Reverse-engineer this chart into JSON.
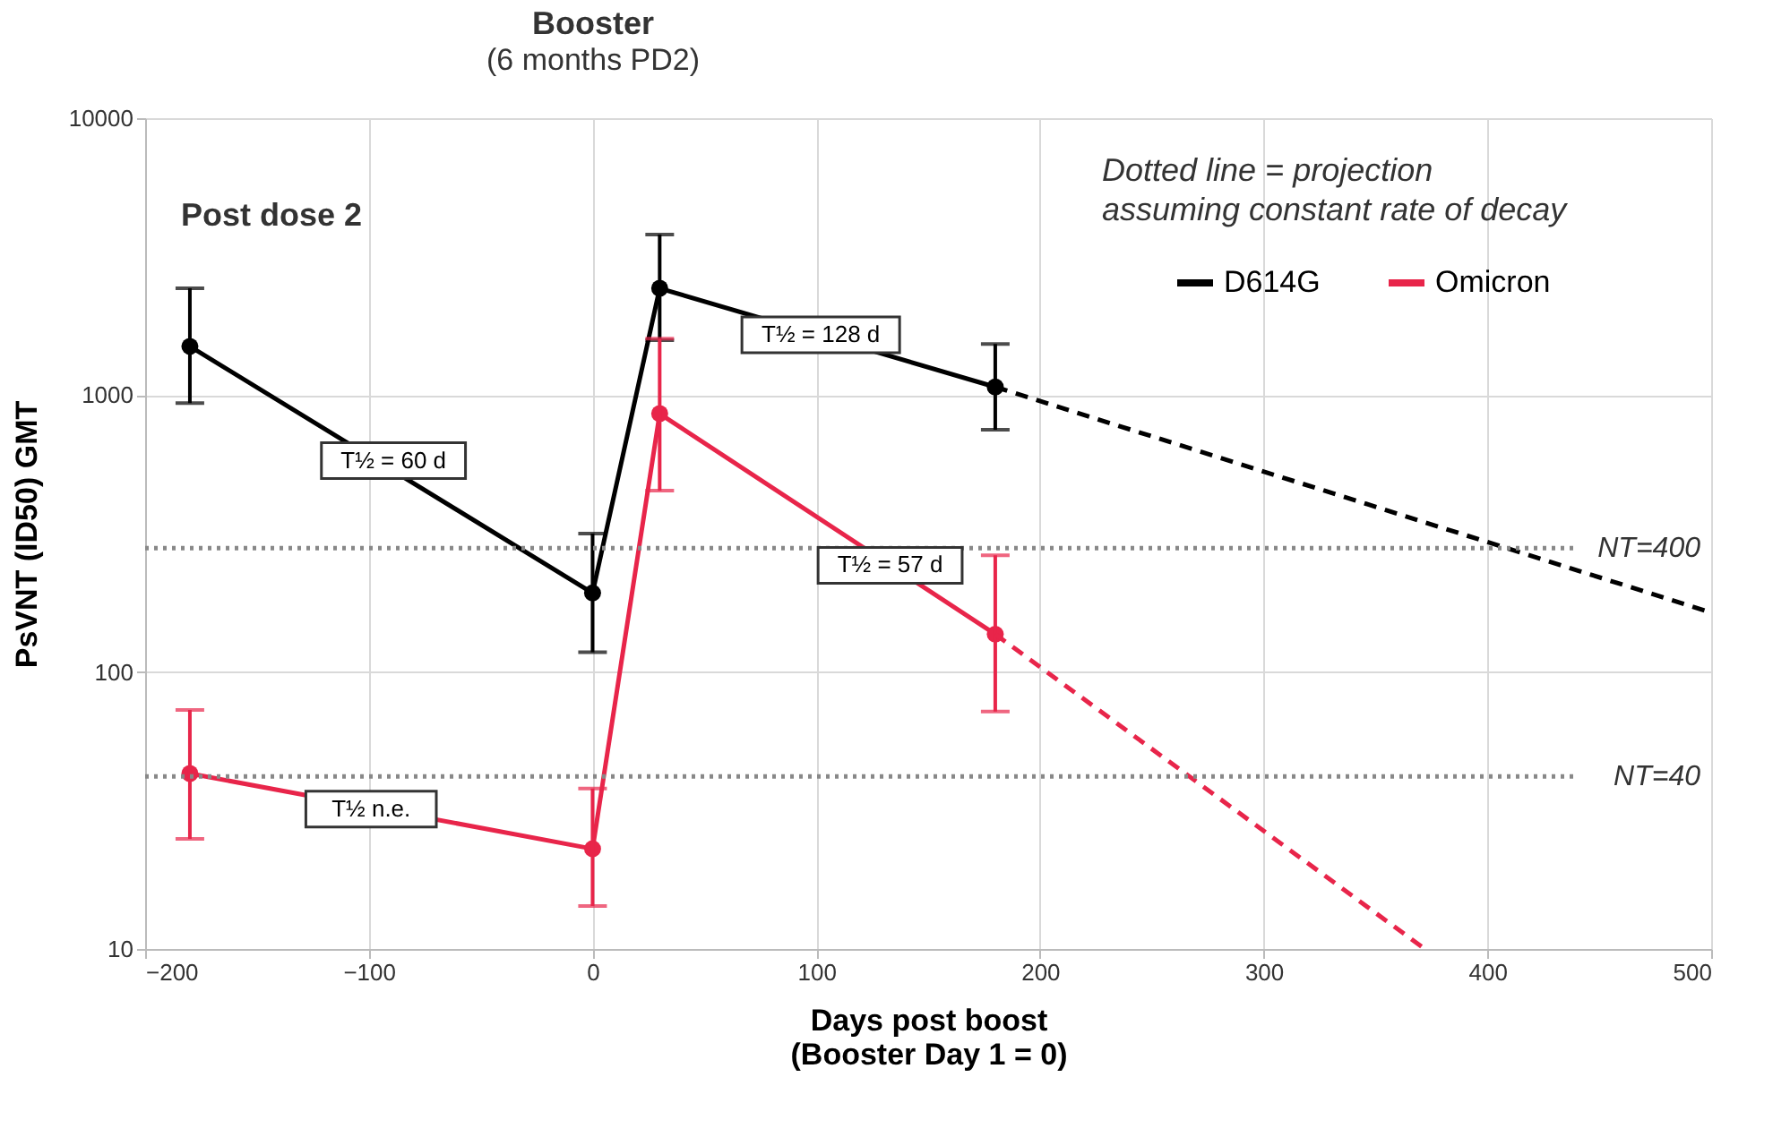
{
  "chart_data": {
    "type": "line",
    "title": "Booster",
    "subtitle": "(6 months PD2)",
    "xlabel": "Days post boost\n(Booster Day 1 = 0)",
    "ylabel": "PsVNT (ID50) GMT",
    "series": [
      {
        "name": "D614G",
        "color": "#000000",
        "x": [
          -180,
          0,
          30,
          180
        ],
        "values": [
          1500,
          193,
          2430,
          1070
        ],
        "errors": [
          [
            936,
            2430
          ],
          [
            118,
            316
          ],
          [
            1580,
            3800
          ],
          [
            750,
            1530
          ]
        ],
        "marker": "circle",
        "line_style": "solid"
      },
      {
        "name": "Omicron",
        "color": "#e8254a",
        "x": [
          -180,
          0,
          30,
          180
        ],
        "values": [
          43,
          23,
          857,
          137
        ],
        "errors": [
          [
            25,
            73
          ],
          [
            14.3,
            38
          ],
          [
            452,
            1600
          ],
          [
            72,
            264
          ]
        ],
        "marker": "circle",
        "line_style": "solid"
      },
      {
        "color": "#000000",
        "x": [
          180,
          500
        ],
        "values": [
          1070,
          164
        ],
        "marker": "none",
        "line_style": "dashed"
      },
      {
        "color": "#e8254a",
        "x": [
          180,
          372
        ],
        "values": [
          137,
          10
        ],
        "marker": "none",
        "line_style": "dashed"
      }
    ],
    "xlim": [
      -200,
      500
    ],
    "xticks": [
      -200,
      -100,
      0,
      100,
      200,
      300,
      400,
      500
    ],
    "ylim": [
      10,
      10000
    ],
    "yticks": [
      10,
      100,
      1000,
      10000
    ],
    "log": true,
    "grid": true,
    "legend": "top right",
    "ref_lines": [
      {
        "axis": "y",
        "value": 280,
        "color": "#888888",
        "line_style": "dotted"
      },
      {
        "axis": "y",
        "value": 42,
        "color": "#888888",
        "line_style": "dotted"
      }
    ],
    "annotations": [
      "Post dose 2",
      "Dotted line = projection\nassuming constant rate of decay",
      "NT=400",
      "NT=40",
      {
        "text": "T½ = 60 d",
        "x": -89,
        "y": 580
      },
      {
        "text": "T½ = 128 d",
        "x": 102,
        "y": 1650
      },
      {
        "text": "T½ = 57 d",
        "x": 133,
        "y": 243
      },
      {
        "text": "T½  n.e.",
        "x": -99,
        "y": 32
      }
    ]
  }
}
